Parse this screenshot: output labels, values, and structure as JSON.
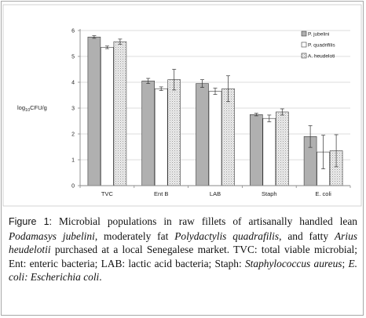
{
  "chart_data": {
    "type": "bar",
    "categories": [
      "TVC",
      "Ent B",
      "LAB",
      "Staph",
      "E. coli"
    ],
    "ylabel": "log10CFU/g",
    "ylabel_main": "log",
    "ylabel_sub": "10",
    "ylabel_unit": "CFU/g",
    "ylim": [
      0,
      6
    ],
    "yticks": [
      "0",
      "1",
      "2",
      "3",
      "4",
      "5",
      "6"
    ],
    "grid": true,
    "legend_position": "top-right",
    "series": [
      {
        "name": "P. jubelini",
        "values": [
          5.75,
          4.05,
          3.95,
          2.75,
          1.9
        ],
        "errors": [
          0.05,
          0.1,
          0.15,
          0.05,
          0.42
        ],
        "fill": "#b0b0b0",
        "pattern": "solid"
      },
      {
        "name": "P. quadrifilis",
        "values": [
          5.35,
          3.75,
          3.65,
          2.6,
          1.3
        ],
        "errors": [
          0.05,
          0.07,
          0.12,
          0.13,
          0.65
        ],
        "fill": "#ffffff",
        "pattern": "solid"
      },
      {
        "name": "A. heudeloti",
        "values": [
          5.57,
          4.1,
          3.75,
          2.85,
          1.35
        ],
        "errors": [
          0.1,
          0.4,
          0.5,
          0.12,
          0.62
        ],
        "fill": "#ececec",
        "pattern": "dots"
      }
    ]
  },
  "caption": {
    "label": "Figure 1:",
    "t1": " Microbial populations in raw fillets of artisanally handled lean ",
    "sp1": "Podamasys jubelini",
    "t2": ", moderately fat ",
    "sp2": "Polydactylis quadrafilis",
    "t3": ", and fatty ",
    "sp3": "Arius heudelotii",
    "t4": " purchased at a local Senegalese market. TVC: total viable microbial; Ent: enteric bacteria; LAB: lactic acid bacteria; Staph: ",
    "sp4": "Staphylococcus aureus",
    "t5": "; ",
    "sp5": "E. coli: Escherichia coli",
    "t6": "."
  }
}
